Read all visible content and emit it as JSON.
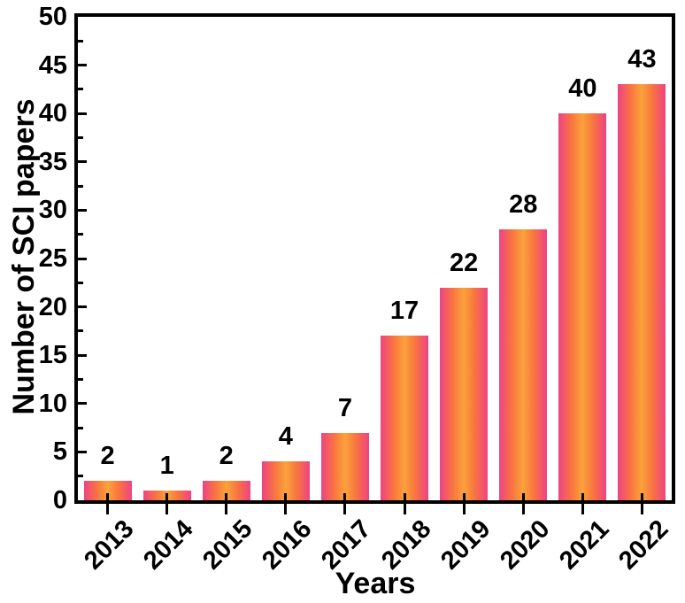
{
  "chart_data": {
    "type": "bar",
    "categories": [
      "2013",
      "2014",
      "2015",
      "2016",
      "2017",
      "2018",
      "2019",
      "2020",
      "2021",
      "2022"
    ],
    "values": [
      2,
      1,
      2,
      4,
      7,
      17,
      22,
      28,
      40,
      43
    ],
    "bar_labels": [
      "2",
      "1",
      "2",
      "4",
      "7",
      "17",
      "22",
      "28",
      "40",
      "43"
    ],
    "title": "",
    "xlabel": "Years",
    "ylabel": "Number of SCI papers",
    "ylim": [
      0,
      50
    ],
    "ytick_step": 5,
    "yminor_step": 2.5,
    "ytick_labels": [
      "0",
      "5",
      "10",
      "15",
      "20",
      "25",
      "30",
      "35",
      "40",
      "45",
      "50"
    ],
    "grid": false,
    "legend": "none",
    "colors": {
      "bar_edge": "#EE4384",
      "bar_center": "#FAA23C",
      "axis": "#000000",
      "text": "#000000",
      "background": "#FFFFFF"
    }
  }
}
